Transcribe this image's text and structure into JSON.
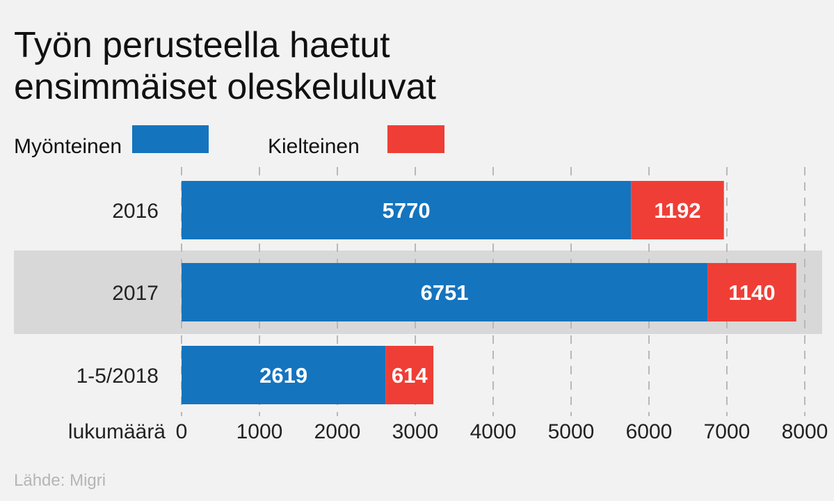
{
  "chart_data": {
    "type": "bar",
    "orientation": "horizontal",
    "stacked": true,
    "title_lines": [
      "Työn perusteella haetut",
      "ensimmäiset oleskeluluvat"
    ],
    "categories": [
      "2016",
      "2017",
      "1-5/2018"
    ],
    "highlighted_category": "2017",
    "series": [
      {
        "name": "Myönteinen",
        "color": "#1574be",
        "values": [
          5770,
          6751,
          2619
        ]
      },
      {
        "name": "Kielteinen",
        "color": "#ef3e36",
        "values": [
          1192,
          1140,
          614
        ]
      }
    ],
    "xlabel": "lukumäärä",
    "xlim": [
      0,
      8000
    ],
    "xticks": [
      0,
      1000,
      2000,
      3000,
      4000,
      5000,
      6000,
      7000,
      8000
    ],
    "grid": true,
    "legend_position": "top-left"
  },
  "source": "Lähde: Migri",
  "colors": {
    "background": "#f2f2f2",
    "highlight_band": "#d8d8d8"
  }
}
